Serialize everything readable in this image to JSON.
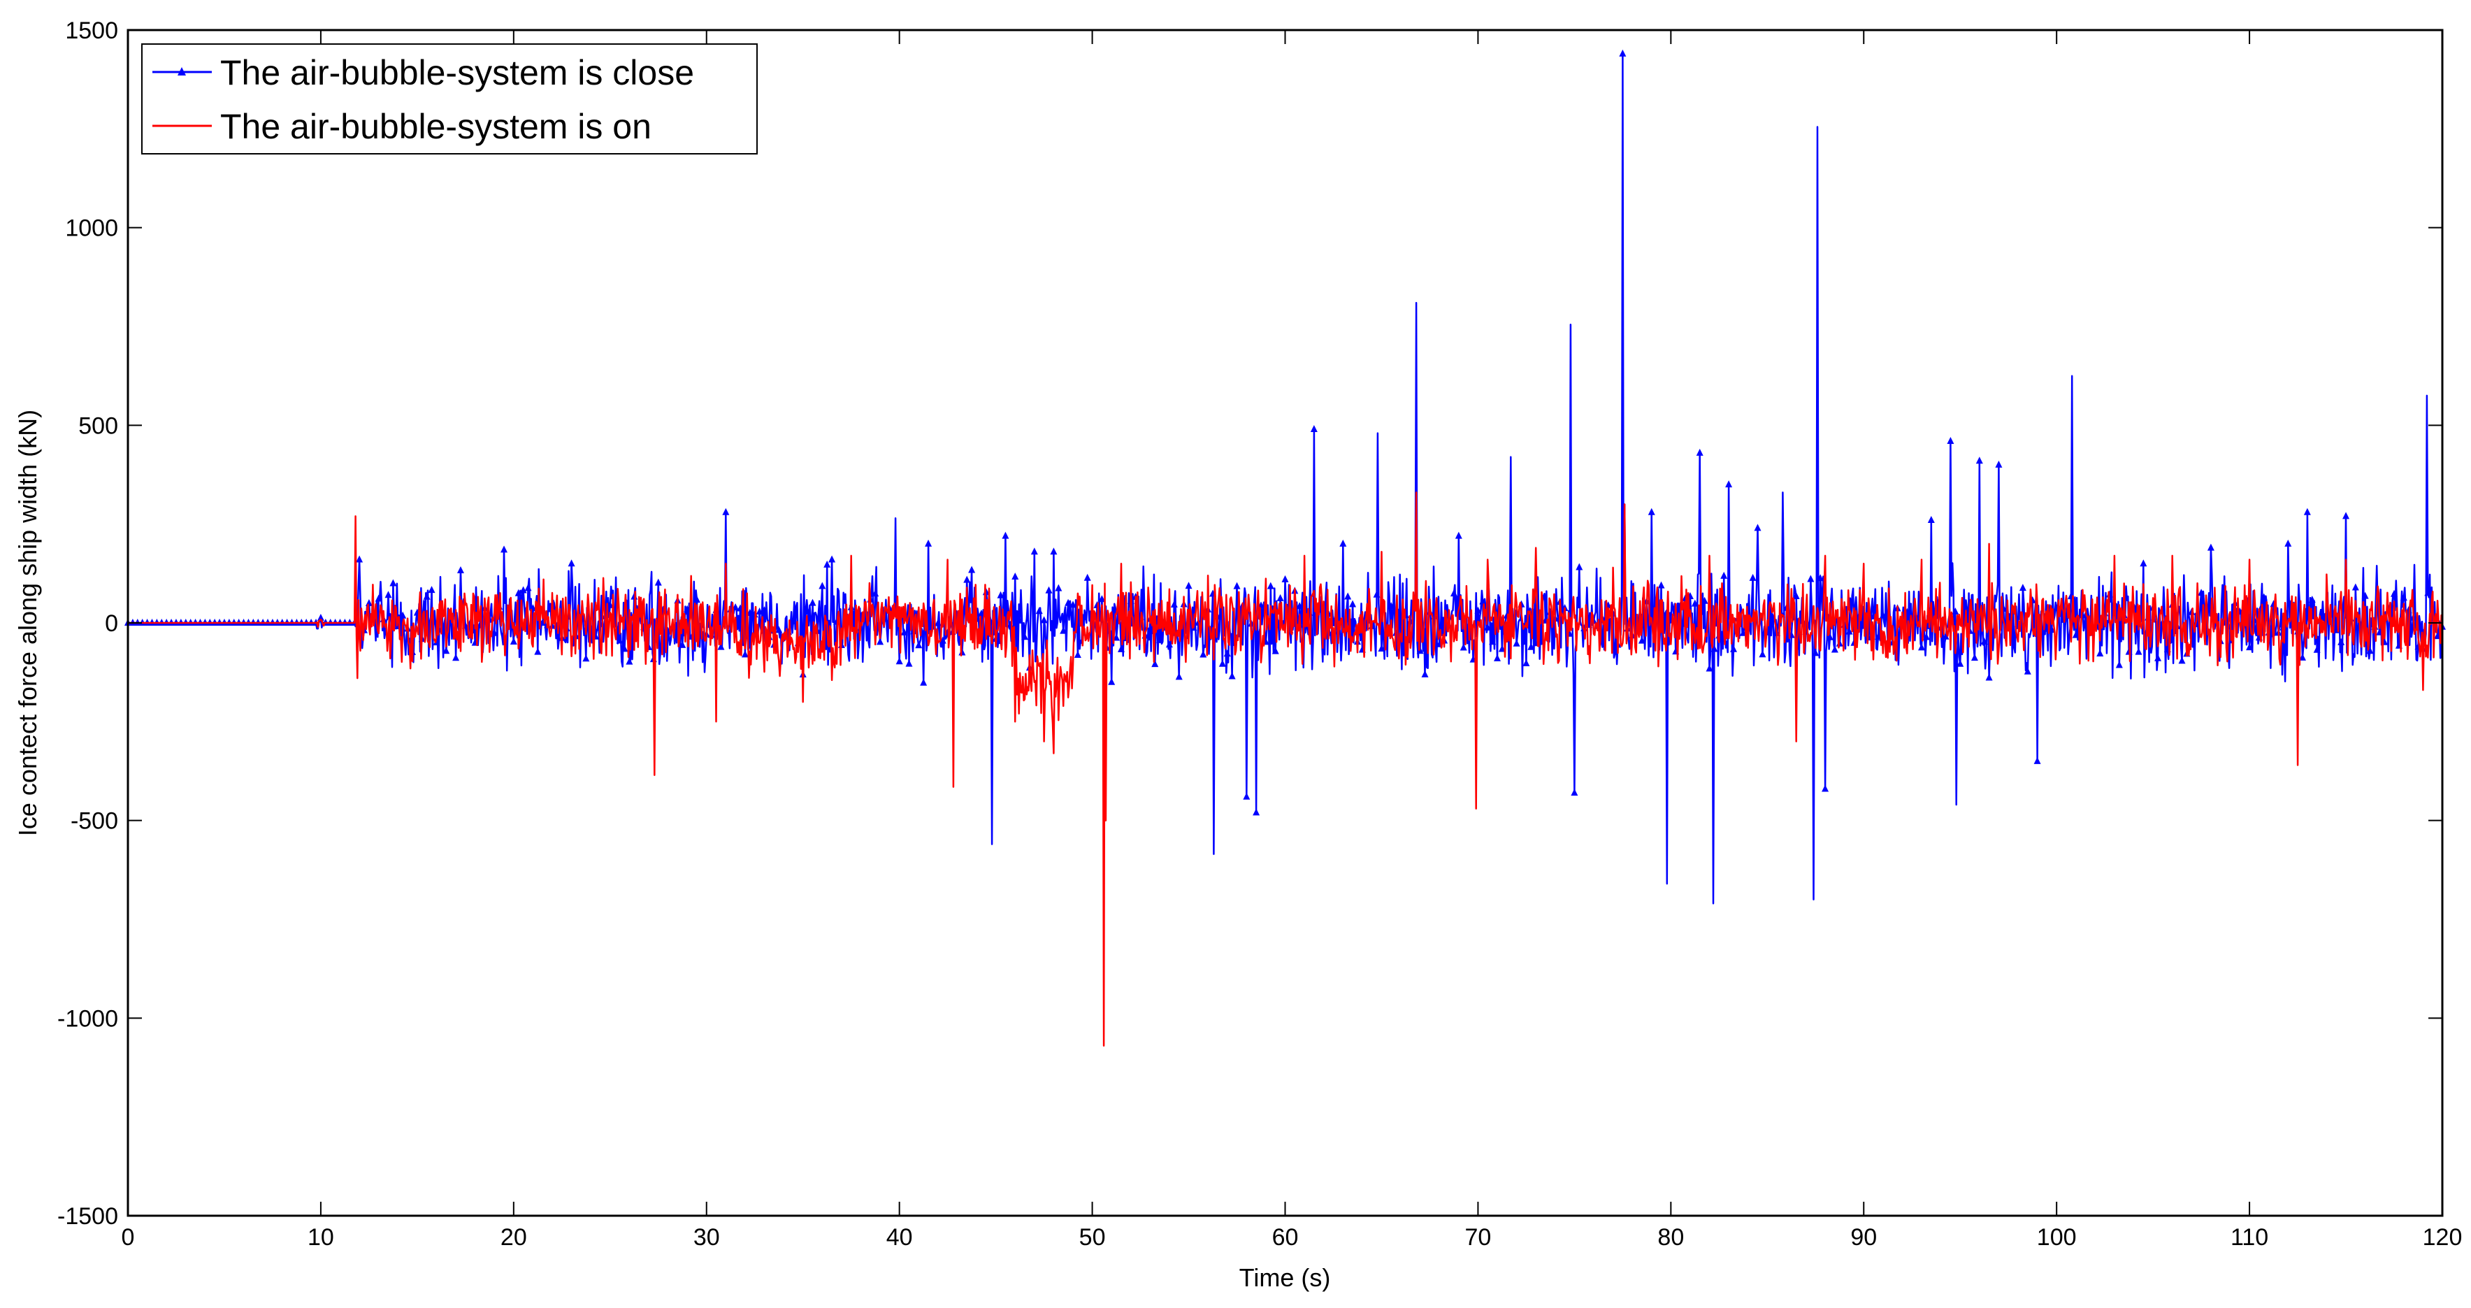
{
  "chart_data": {
    "type": "line",
    "xlabel": "Time (s)",
    "ylabel": "Ice contect force along ship width (kN)",
    "xlim": [
      0,
      120
    ],
    "ylim": [
      -1500,
      1500
    ],
    "xticks": [
      0,
      10,
      20,
      30,
      40,
      50,
      60,
      70,
      80,
      90,
      100,
      110,
      120
    ],
    "yticks": [
      -1500,
      -1000,
      -500,
      0,
      500,
      1000,
      1500
    ],
    "grid": false,
    "legend_position": "top-left",
    "colors": {
      "series_close": "#0000ff",
      "series_on": "#ff0000"
    },
    "series": [
      {
        "name": "The air-bubble-system is close",
        "color": "#0000ff",
        "marker": "triangle",
        "noise_amplitude": 55,
        "peaks": [
          [
            12.0,
            160
          ],
          [
            19.5,
            185
          ],
          [
            23.0,
            150
          ],
          [
            31.0,
            280
          ],
          [
            36.5,
            160
          ],
          [
            39.8,
            265
          ],
          [
            41.5,
            200
          ],
          [
            44.8,
            -560
          ],
          [
            45.5,
            220
          ],
          [
            47.0,
            180
          ],
          [
            48.0,
            180
          ],
          [
            51.0,
            -150
          ],
          [
            56.3,
            -585
          ],
          [
            58.0,
            -440
          ],
          [
            58.5,
            -480
          ],
          [
            60.0,
            110
          ],
          [
            61.5,
            490
          ],
          [
            63.0,
            200
          ],
          [
            64.8,
            480
          ],
          [
            66.8,
            810
          ],
          [
            69.0,
            220
          ],
          [
            71.7,
            420
          ],
          [
            74.8,
            755
          ],
          [
            75.0,
            -430
          ],
          [
            77.5,
            1440
          ],
          [
            77.6,
            300
          ],
          [
            79.0,
            280
          ],
          [
            79.8,
            -660
          ],
          [
            81.5,
            430
          ],
          [
            82.2,
            -710
          ],
          [
            83.0,
            350
          ],
          [
            84.5,
            240
          ],
          [
            85.8,
            330
          ],
          [
            87.4,
            -700
          ],
          [
            87.6,
            1255
          ],
          [
            88.0,
            -420
          ],
          [
            93.5,
            260
          ],
          [
            94.5,
            460
          ],
          [
            94.8,
            -460
          ],
          [
            96.0,
            410
          ],
          [
            97.0,
            400
          ],
          [
            99.0,
            -350
          ],
          [
            100.8,
            625
          ],
          [
            104.5,
            150
          ],
          [
            108.0,
            190
          ],
          [
            112.0,
            200
          ],
          [
            113.0,
            280
          ],
          [
            115.0,
            270
          ],
          [
            119.2,
            575
          ]
        ]
      },
      {
        "name": "The air-bubble-system is on",
        "color": "#ff0000",
        "marker": "none",
        "noise_amplitude": 45,
        "peaks": [
          [
            11.8,
            270
          ],
          [
            11.9,
            -140
          ],
          [
            27.3,
            -385
          ],
          [
            30.5,
            -250
          ],
          [
            31.0,
            150
          ],
          [
            35.0,
            -200
          ],
          [
            37.5,
            170
          ],
          [
            42.5,
            160
          ],
          [
            42.8,
            -415
          ],
          [
            46.0,
            -250
          ],
          [
            47.5,
            -300
          ],
          [
            48.0,
            -330
          ],
          [
            50.6,
            -1070
          ],
          [
            50.7,
            -500
          ],
          [
            51.5,
            150
          ],
          [
            56.0,
            120
          ],
          [
            61.0,
            170
          ],
          [
            65.0,
            180
          ],
          [
            66.8,
            330
          ],
          [
            69.9,
            -470
          ],
          [
            70.5,
            160
          ],
          [
            73.0,
            190
          ],
          [
            77.0,
            140
          ],
          [
            77.6,
            300
          ],
          [
            82.0,
            170
          ],
          [
            86.5,
            -300
          ],
          [
            88.0,
            170
          ],
          [
            90.0,
            150
          ],
          [
            93.0,
            160
          ],
          [
            96.5,
            200
          ],
          [
            103.0,
            170
          ],
          [
            106.0,
            170
          ],
          [
            110.0,
            160
          ],
          [
            112.5,
            -360
          ],
          [
            115.0,
            160
          ],
          [
            119.0,
            -170
          ]
        ]
      }
    ]
  }
}
